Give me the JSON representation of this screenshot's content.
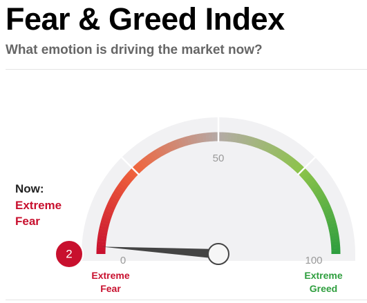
{
  "chart_data": {
    "type": "gauge",
    "title": "Fear & Greed Index",
    "subtitle": "What emotion is driving the market now?",
    "now_label": "Now:",
    "status": "Extreme Fear",
    "value": 2,
    "ylim": [
      0,
      100
    ],
    "yticks": [
      0,
      50,
      100
    ],
    "segments": [
      0,
      25,
      50,
      75,
      100
    ],
    "colors": [
      "#c8102e",
      "#f0643c",
      "#b4aaa6",
      "#8cc34a",
      "#2e9e3e"
    ],
    "low_label": "Extreme Fear",
    "high_label": "Extreme Greed",
    "low_color": "#c8102e",
    "high_color": "#2e9e3e"
  }
}
